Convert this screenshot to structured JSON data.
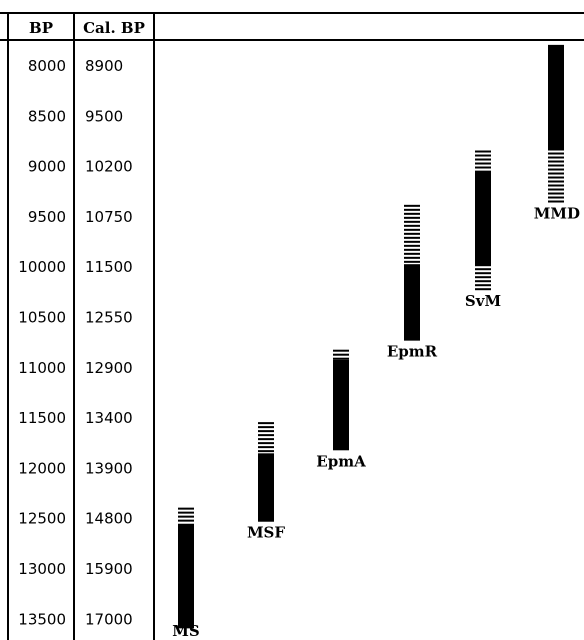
{
  "headers": {
    "bp": "BP",
    "cal_bp": "Cal. BP"
  },
  "rows": [
    {
      "bp": "8000",
      "cal": "8900"
    },
    {
      "bp": "8500",
      "cal": "9500"
    },
    {
      "bp": "9000",
      "cal": "10200"
    },
    {
      "bp": "9500",
      "cal": "10750"
    },
    {
      "bp": "10000",
      "cal": "11500"
    },
    {
      "bp": "10500",
      "cal": "12550"
    },
    {
      "bp": "11000",
      "cal": "12900"
    },
    {
      "bp": "11500",
      "cal": "13400"
    },
    {
      "bp": "12000",
      "cal": "13900"
    },
    {
      "bp": "12500",
      "cal": "14800"
    },
    {
      "bp": "13000",
      "cal": "15900"
    },
    {
      "bp": "13500",
      "cal": "17000"
    }
  ],
  "ranges": [
    {
      "label": "MS",
      "dashed_from_bp": 12400,
      "solid_from_bp": 12560,
      "solid_to_bp": 13600,
      "dashed_to_bp": 13600
    },
    {
      "label": "MSF",
      "dashed_from_bp": 11550,
      "solid_from_bp": 11860,
      "solid_to_bp": 12540,
      "dashed_to_bp": 12540
    },
    {
      "label": "EpmA",
      "dashed_from_bp": 10830,
      "solid_from_bp": 10930,
      "solid_to_bp": 11830,
      "dashed_to_bp": 11830
    },
    {
      "label": "EpmR",
      "dashed_from_bp": 9390,
      "solid_from_bp": 9980,
      "solid_to_bp": 10740,
      "dashed_to_bp": 10740
    },
    {
      "label": "SvM",
      "dashed_from_bp": 8850,
      "solid_from_bp": 9050,
      "solid_to_bp": 10000,
      "dashed_to_bp": 10220
    },
    {
      "label": "MMD",
      "dashed_from_bp": 7800,
      "solid_from_bp": 7800,
      "solid_to_bp": 8850,
      "dashed_to_bp": 9350
    }
  ]
}
